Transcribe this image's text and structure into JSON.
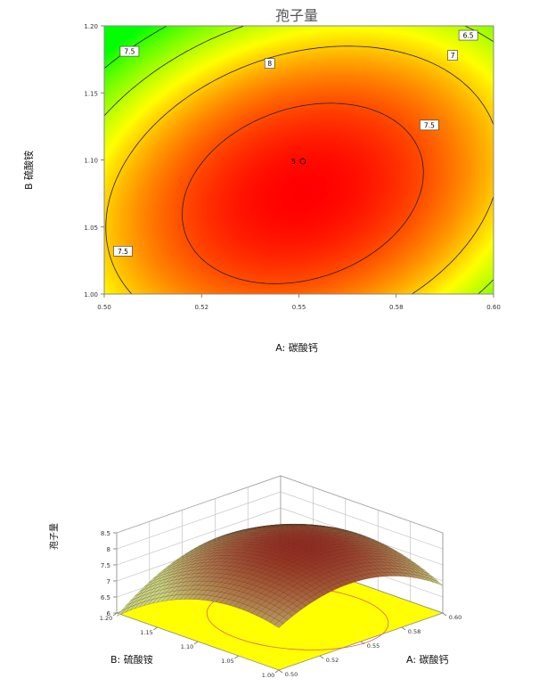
{
  "chart_data": [
    {
      "type": "contour",
      "title": "孢子量",
      "xlabel": "A: 碳酸钙",
      "ylabel": "B 硫酸铵",
      "xlim": [
        0.5,
        0.6
      ],
      "ylim": [
        1.0,
        1.2
      ],
      "x_ticks": [
        "0.50",
        "0.52",
        "0.55",
        "0.58",
        "0.60"
      ],
      "y_ticks": [
        "1.00",
        "1.05",
        "1.10",
        "1.15",
        "1.20"
      ],
      "color_scale": [
        "#ff0000",
        "#ffff00",
        "#00ff00"
      ],
      "contour_levels": [
        6.5,
        7,
        7.5,
        8
      ],
      "contour_labels": [
        {
          "level": "6.5",
          "x": 0.5935,
          "y": 1.193
        },
        {
          "level": "7",
          "x": 0.5895,
          "y": 1.178
        },
        {
          "level": "7.5",
          "x": 0.5835,
          "y": 1.126
        },
        {
          "level": "8",
          "x": 0.5425,
          "y": 1.172
        },
        {
          "level": "7.5",
          "x": 0.5065,
          "y": 1.181
        },
        {
          "level": "7.5",
          "x": 0.5048,
          "y": 1.032
        }
      ],
      "center_point": {
        "label": "5",
        "x": 0.551,
        "y": 1.099
      }
    },
    {
      "type": "surface3d",
      "zlabel": "孢子量",
      "xlabel": "A: 碳酸钙",
      "ylabel": "B: 硫酸铵",
      "x_ticks": [
        "0.50",
        "0.52",
        "0.55",
        "0.58",
        "0.60"
      ],
      "y_ticks": [
        "1.00",
        "1.05",
        "1.10",
        "1.15",
        "1.20"
      ],
      "z_ticks": [
        "6",
        "6.5",
        "7",
        "7.5",
        "8",
        "8.5"
      ],
      "zlim": [
        6,
        8.5
      ]
    }
  ]
}
